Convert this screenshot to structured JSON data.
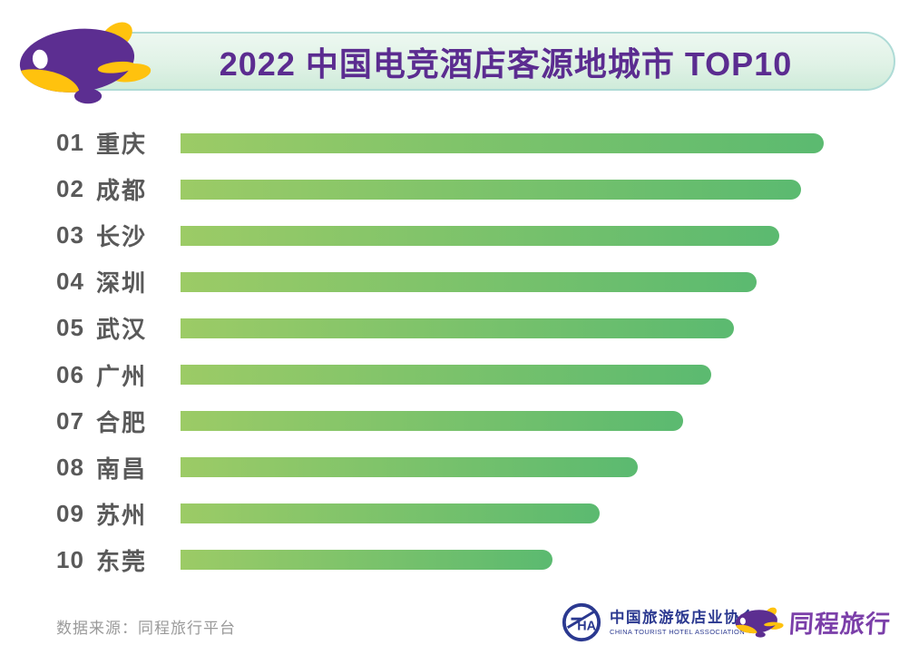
{
  "header": {
    "title": "2022 中国电竞酒店客源地城市 TOP10"
  },
  "chart_data": {
    "type": "bar",
    "orientation": "horizontal",
    "title": "2022 中国电竞酒店客源地城市 TOP10",
    "ranks": [
      "01",
      "02",
      "03",
      "04",
      "05",
      "06",
      "07",
      "08",
      "09",
      "10"
    ],
    "categories": [
      "重庆",
      "成都",
      "长沙",
      "深圳",
      "武汉",
      "广州",
      "合肥",
      "南昌",
      "苏州",
      "东莞"
    ],
    "values": [
      100.0,
      96.5,
      93.1,
      89.6,
      86.0,
      82.5,
      78.1,
      71.1,
      65.2,
      57.8
    ],
    "values_note": "relative bar lengths in % of longest bar; no numeric data labels are shown in the image",
    "xlim": [
      0,
      100
    ],
    "grid": false,
    "legend": false,
    "bar_gradient": [
      "#9CCB66",
      "#5BBA70"
    ]
  },
  "footer": {
    "source": "数据来源：同程旅行平台",
    "association": {
      "name_cn": "中国旅游饭店业协会",
      "name_en": "CHINA TOURIST HOTEL ASSOCIATION"
    },
    "brand": {
      "wordmark": "同程旅行"
    }
  },
  "colors": {
    "title_purple": "#5B2C90",
    "banner_border": "#AEDBD6",
    "bar_start": "#9CCB66",
    "bar_end": "#5BBA70",
    "label_gray": "#595959",
    "source_gray": "#9A9A9A",
    "assoc_navy": "#2B3990",
    "brand_purple": "#7B3FA9",
    "mascot_purple": "#5C2E91",
    "mascot_yellow": "#FFC20E"
  }
}
